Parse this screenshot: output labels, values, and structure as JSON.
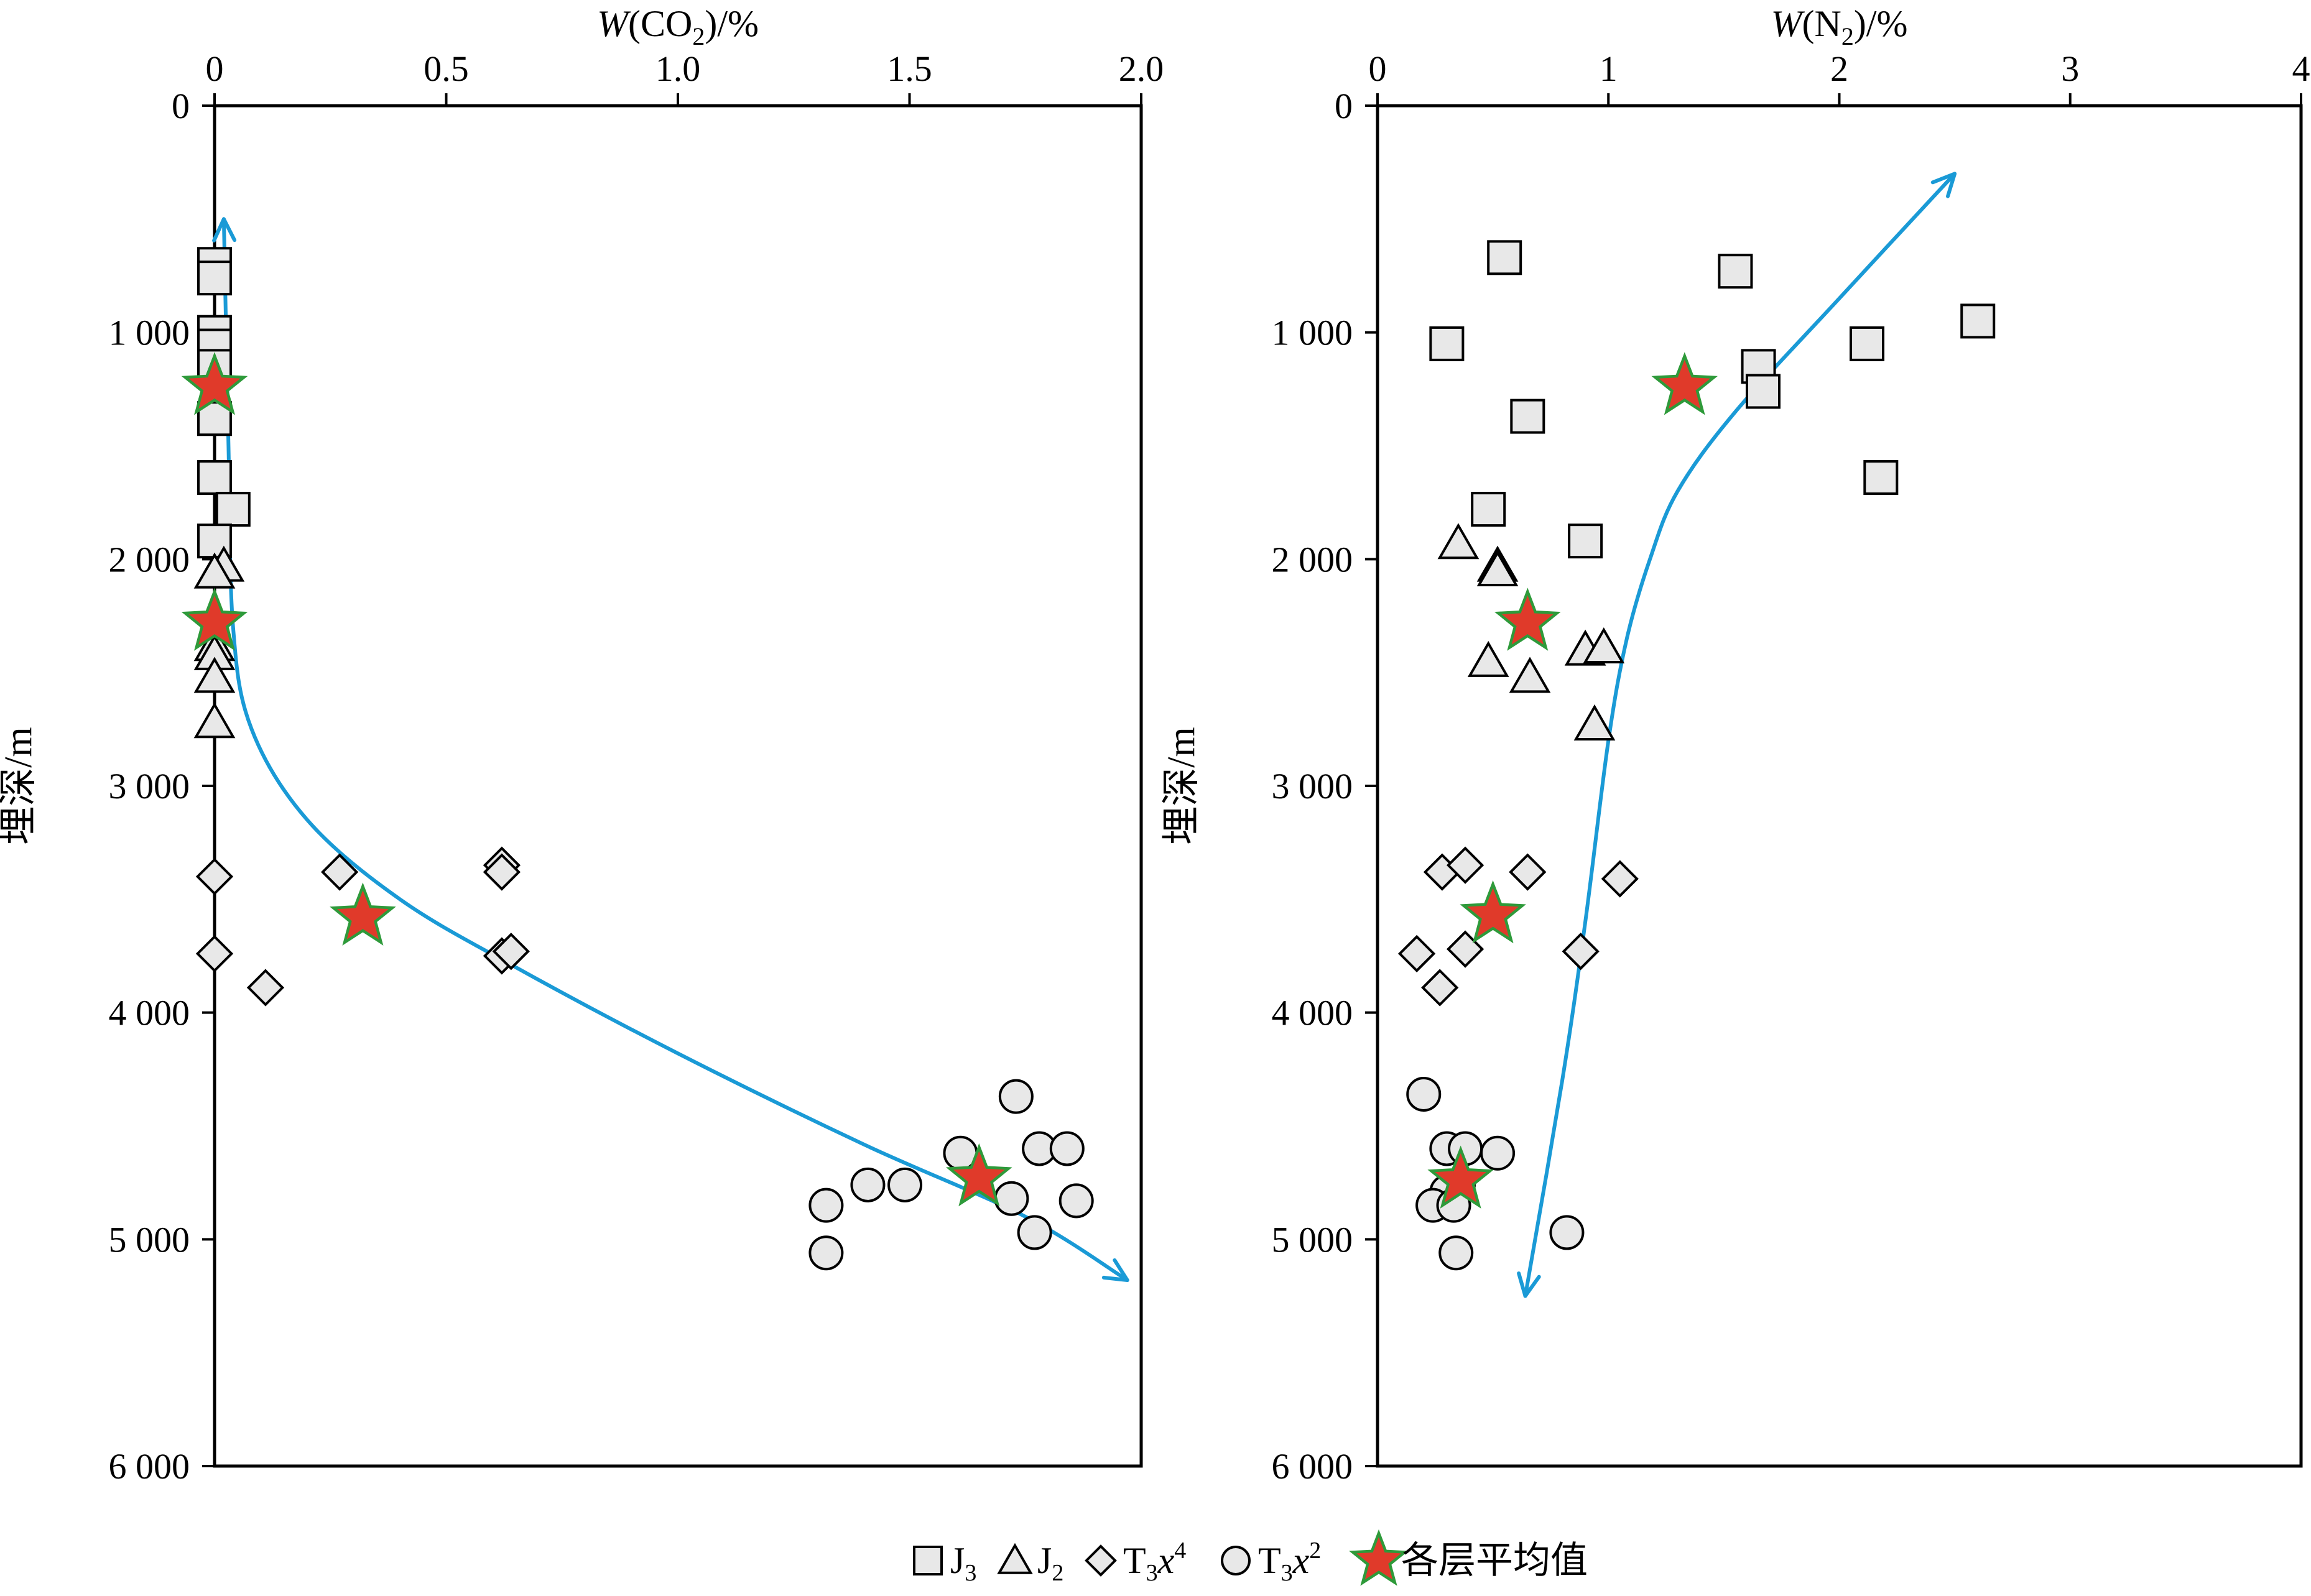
{
  "chart_data": [
    {
      "type": "scatter",
      "xlabel": {
        "prefix": "W",
        "open": "(CO",
        "sub": "2",
        "close": ")/%"
      },
      "ylabel": "埋深/m",
      "xlim": [
        0,
        2.0
      ],
      "ylim": [
        0,
        6000
      ],
      "y_inverted": true,
      "x_axis_position": "top",
      "xticks": [
        0,
        0.5,
        1.0,
        1.5,
        2.0
      ],
      "xtick_labels": [
        "0",
        "0.5",
        "1.0",
        "1.5",
        "2.0"
      ],
      "yticks": [
        0,
        1000,
        2000,
        3000,
        4000,
        5000,
        6000
      ],
      "ytick_labels": [
        "0",
        "1 000",
        "2 000",
        "3 000",
        "4 000",
        "5 000",
        "6 000"
      ],
      "series": [
        {
          "key": "J3",
          "marker": "square",
          "points": [
            {
              "x": 0.0,
              "y": 700
            },
            {
              "x": 0.0,
              "y": 760
            },
            {
              "x": 0.0,
              "y": 1000
            },
            {
              "x": 0.0,
              "y": 1060
            },
            {
              "x": 0.0,
              "y": 1150
            },
            {
              "x": 0.0,
              "y": 1380
            },
            {
              "x": 0.0,
              "y": 1640
            },
            {
              "x": 0.04,
              "y": 1780
            },
            {
              "x": 0.0,
              "y": 1920
            }
          ]
        },
        {
          "key": "J2",
          "marker": "triangle",
          "points": [
            {
              "x": 0.02,
              "y": 2030
            },
            {
              "x": 0.0,
              "y": 2060
            },
            {
              "x": 0.0,
              "y": 2380
            },
            {
              "x": 0.0,
              "y": 2420
            },
            {
              "x": 0.0,
              "y": 2520
            },
            {
              "x": 0.0,
              "y": 2720
            }
          ]
        },
        {
          "key": "T3x4",
          "marker": "diamond",
          "points": [
            {
              "x": 0.0,
              "y": 3400
            },
            {
              "x": 0.0,
              "y": 3740
            },
            {
              "x": 0.11,
              "y": 3890
            },
            {
              "x": 0.27,
              "y": 3380
            },
            {
              "x": 0.62,
              "y": 3350
            },
            {
              "x": 0.62,
              "y": 3380
            },
            {
              "x": 0.62,
              "y": 3750
            },
            {
              "x": 0.64,
              "y": 3730
            }
          ]
        },
        {
          "key": "T3x2",
          "marker": "circle",
          "points": [
            {
              "x": 1.32,
              "y": 4850
            },
            {
              "x": 1.32,
              "y": 5060
            },
            {
              "x": 1.41,
              "y": 4760
            },
            {
              "x": 1.49,
              "y": 4760
            },
            {
              "x": 1.61,
              "y": 4620
            },
            {
              "x": 1.72,
              "y": 4820
            },
            {
              "x": 1.73,
              "y": 4370
            },
            {
              "x": 1.77,
              "y": 4970
            },
            {
              "x": 1.78,
              "y": 4600
            },
            {
              "x": 1.84,
              "y": 4600
            },
            {
              "x": 1.86,
              "y": 4830
            }
          ]
        },
        {
          "key": "avg",
          "marker": "star",
          "points": [
            {
              "x": 0.0,
              "y": 1240
            },
            {
              "x": 0.0,
              "y": 2280
            },
            {
              "x": 0.32,
              "y": 3580
            },
            {
              "x": 1.65,
              "y": 4730
            }
          ]
        }
      ],
      "trend_curve": [
        {
          "x": 0.02,
          "y": 500
        },
        {
          "x": 0.03,
          "y": 1500
        },
        {
          "x": 0.04,
          "y": 2300
        },
        {
          "x": 0.08,
          "y": 2750
        },
        {
          "x": 0.2,
          "y": 3150
        },
        {
          "x": 0.4,
          "y": 3500
        },
        {
          "x": 0.65,
          "y": 3800
        },
        {
          "x": 1.0,
          "y": 4180
        },
        {
          "x": 1.4,
          "y": 4580
        },
        {
          "x": 1.75,
          "y": 4900
        },
        {
          "x": 1.97,
          "y": 5180
        }
      ],
      "trend_color": "#1a9ad6"
    },
    {
      "type": "scatter",
      "xlabel": {
        "prefix": "W",
        "open": "(N",
        "sub": "2",
        "close": ")/%"
      },
      "ylabel": "埋深/m",
      "xlim": [
        0,
        4
      ],
      "ylim": [
        0,
        6000
      ],
      "y_inverted": true,
      "x_axis_position": "top",
      "xticks": [
        0,
        1,
        2,
        3,
        4
      ],
      "xtick_labels": [
        "0",
        "1",
        "2",
        "3",
        "4"
      ],
      "yticks": [
        0,
        1000,
        2000,
        3000,
        4000,
        5000,
        6000
      ],
      "ytick_labels": [
        "0",
        "1 000",
        "2 000",
        "3 000",
        "4 000",
        "5 000",
        "6 000"
      ],
      "series": [
        {
          "key": "J3",
          "marker": "square",
          "points": [
            {
              "x": 0.55,
              "y": 670
            },
            {
              "x": 1.55,
              "y": 730
            },
            {
              "x": 2.6,
              "y": 950
            },
            {
              "x": 0.3,
              "y": 1050
            },
            {
              "x": 2.12,
              "y": 1050
            },
            {
              "x": 1.65,
              "y": 1150
            },
            {
              "x": 1.67,
              "y": 1260
            },
            {
              "x": 0.65,
              "y": 1370
            },
            {
              "x": 2.18,
              "y": 1640
            },
            {
              "x": 0.48,
              "y": 1780
            },
            {
              "x": 0.9,
              "y": 1920
            }
          ]
        },
        {
          "key": "J2",
          "marker": "triangle",
          "points": [
            {
              "x": 0.35,
              "y": 1930
            },
            {
              "x": 0.52,
              "y": 2030
            },
            {
              "x": 0.52,
              "y": 2050
            },
            {
              "x": 0.9,
              "y": 2400
            },
            {
              "x": 0.98,
              "y": 2390
            },
            {
              "x": 0.48,
              "y": 2450
            },
            {
              "x": 0.66,
              "y": 2520
            },
            {
              "x": 0.94,
              "y": 2730
            }
          ]
        },
        {
          "key": "T3x4",
          "marker": "diamond",
          "points": [
            {
              "x": 0.28,
              "y": 3380
            },
            {
              "x": 0.38,
              "y": 3350
            },
            {
              "x": 0.65,
              "y": 3380
            },
            {
              "x": 1.05,
              "y": 3410
            },
            {
              "x": 0.17,
              "y": 3740
            },
            {
              "x": 0.38,
              "y": 3720
            },
            {
              "x": 0.88,
              "y": 3730
            },
            {
              "x": 0.27,
              "y": 3890
            }
          ]
        },
        {
          "key": "T3x2",
          "marker": "circle",
          "points": [
            {
              "x": 0.2,
              "y": 4360
            },
            {
              "x": 0.3,
              "y": 4600
            },
            {
              "x": 0.38,
              "y": 4600
            },
            {
              "x": 0.52,
              "y": 4620
            },
            {
              "x": 0.35,
              "y": 4760
            },
            {
              "x": 0.3,
              "y": 4790
            },
            {
              "x": 0.24,
              "y": 4850
            },
            {
              "x": 0.33,
              "y": 4850
            },
            {
              "x": 0.82,
              "y": 4970
            },
            {
              "x": 0.34,
              "y": 5060
            }
          ]
        },
        {
          "key": "avg",
          "marker": "star",
          "points": [
            {
              "x": 1.33,
              "y": 1240
            },
            {
              "x": 0.65,
              "y": 2280
            },
            {
              "x": 0.5,
              "y": 3570
            },
            {
              "x": 0.36,
              "y": 4740
            }
          ]
        }
      ],
      "trend_curve": [
        {
          "x": 2.5,
          "y": 300
        },
        {
          "x": 2.0,
          "y": 850
        },
        {
          "x": 1.55,
          "y": 1350
        },
        {
          "x": 1.3,
          "y": 1700
        },
        {
          "x": 1.18,
          "y": 2000
        },
        {
          "x": 1.08,
          "y": 2350
        },
        {
          "x": 1.0,
          "y": 2800
        },
        {
          "x": 0.9,
          "y": 3600
        },
        {
          "x": 0.8,
          "y": 4300
        },
        {
          "x": 0.64,
          "y": 5250
        }
      ],
      "trend_color": "#1a9ad6"
    }
  ],
  "legend": [
    {
      "key": "J3",
      "marker": "square",
      "base": "J",
      "sub": "3",
      "sup": "",
      "after": ""
    },
    {
      "key": "J2",
      "marker": "triangle",
      "base": "J",
      "sub": "2",
      "sup": "",
      "after": ""
    },
    {
      "key": "T3x4",
      "marker": "diamond",
      "base": "T",
      "sub": "3",
      "italic": "x",
      "sup": "4",
      "after": ""
    },
    {
      "key": "T3x2",
      "marker": "circle",
      "base": "T",
      "sub": "3",
      "italic": "x",
      "sup": "2",
      "after": ""
    },
    {
      "key": "avg",
      "marker": "star",
      "base": "各层平均值",
      "sub": "",
      "sup": "",
      "after": ""
    }
  ],
  "colors": {
    "marker_fill": "#e8e8e8",
    "star_fill": "#e03a2a",
    "star_outline": "#2e9a3a",
    "trend": "#1a9ad6"
  }
}
